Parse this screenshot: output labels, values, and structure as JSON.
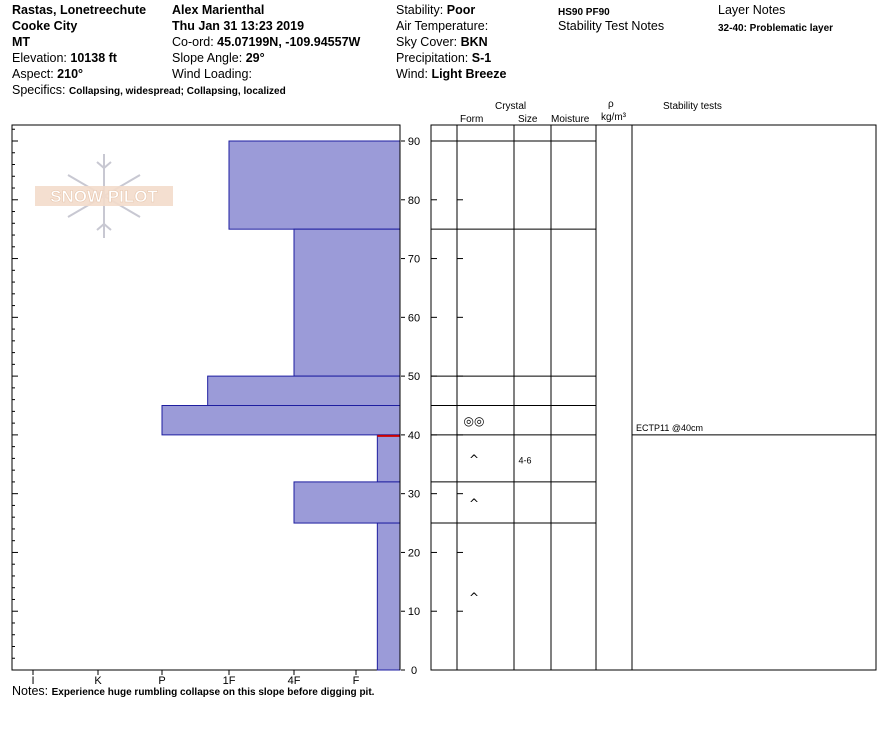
{
  "header": {
    "location": "Rastas, Lonetreechute",
    "area": "Cooke City",
    "state": "MT",
    "elevation_label": "Elevation:",
    "elevation_value": "10138 ft",
    "aspect_label": "Aspect:",
    "aspect_value": "210°",
    "observer": "Alex Marienthal",
    "datetime": "Thu Jan 31 13:23 2019",
    "coord_label": "Co-ord:",
    "coord_value": "45.07199N, -109.94557W",
    "slope_label": "Slope Angle:",
    "slope_value": "29°",
    "wind_loading_label": "Wind Loading:",
    "specifics_label": "Specifics:",
    "specifics_value": "Collapsing, widespread; Collapsing, localized",
    "stability_label": "Stability:",
    "stability_value": "Poor",
    "air_temp_label": "Air Temperature:",
    "sky_label": "Sky Cover:",
    "sky_value": "BKN",
    "precip_label": "Precipitation:",
    "precip_value": "S-1",
    "wind_label": "Wind:",
    "wind_value": "Light Breeze",
    "hs_pf": "HS90 PF90",
    "stability_test_notes_label": "Stability Test Notes",
    "layer_notes_label": "Layer Notes",
    "layer_note": "32-40: Problematic layer"
  },
  "columns": {
    "crystal": "Crystal",
    "form": "Form",
    "size": "Size",
    "moisture": "Moisture",
    "rho": "ρ",
    "density_unit": "kg/m³",
    "stability_tests": "Stability tests"
  },
  "watermark": "SNOW PILOT",
  "notes_label": "Notes:",
  "notes_value": "Experience huge rumbling collapse on this slope before digging pit.",
  "colors": {
    "hardness_fill": "#9b9bd8",
    "hardness_stroke": "#1e1ea0",
    "critical_layer": "#cc0000",
    "grid": "#000000"
  },
  "chart_data": {
    "type": "bar",
    "orientation": "horizontal",
    "y_axis": {
      "label": "",
      "min": 0,
      "max": 90,
      "ticks": [
        0,
        10,
        20,
        30,
        40,
        50,
        60,
        70,
        80,
        90
      ]
    },
    "x_axis": {
      "categories": [
        "I",
        "K",
        "P",
        "1F",
        "4F",
        "F"
      ],
      "direction": "right-to-left"
    },
    "layers": [
      {
        "top": 90,
        "bottom": 75,
        "hardness": "1F"
      },
      {
        "top": 75,
        "bottom": 50,
        "hardness": "4F"
      },
      {
        "top": 50,
        "bottom": 45,
        "hardness": "1F-"
      },
      {
        "top": 45,
        "bottom": 40,
        "hardness": "P"
      },
      {
        "top": 40,
        "bottom": 32,
        "hardness": "F+"
      },
      {
        "top": 32,
        "bottom": 25,
        "hardness": "4F"
      },
      {
        "top": 25,
        "bottom": 0,
        "hardness": "F+"
      }
    ],
    "critical_layer_depth": 40,
    "profile_boundaries": [
      90,
      75,
      50,
      45,
      40,
      32,
      25
    ],
    "crystals": [
      {
        "depth": 42.5,
        "form": "◎◎",
        "size": ""
      },
      {
        "depth": 36,
        "form": "^",
        "size": "4-6"
      },
      {
        "depth": 28.5,
        "form": "^",
        "size": ""
      },
      {
        "depth": 12.5,
        "form": "^",
        "size": ""
      }
    ],
    "stability_tests": [
      {
        "depth": 40,
        "text": "ECTP11 @40cm"
      }
    ]
  }
}
